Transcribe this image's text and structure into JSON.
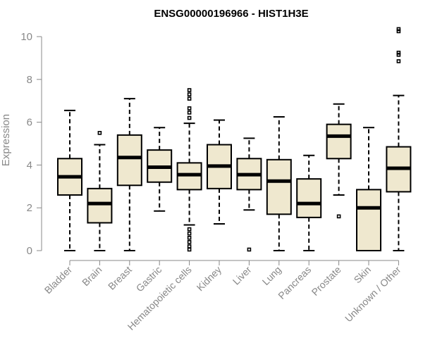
{
  "chart_data": {
    "type": "boxplot",
    "title": "ENSG00000196966 - HIST1H3E",
    "xlabel": "",
    "ylabel": "Expression",
    "ylim": [
      0,
      10.5
    ],
    "yticks": [
      0,
      2,
      4,
      6,
      8,
      10
    ],
    "colors": {
      "box_fill": "#efe8cf",
      "axis": "#888888",
      "stroke": "#000000"
    },
    "boxes": [
      {
        "category": "Bladder",
        "min": 0,
        "q1": 2.6,
        "median": 3.45,
        "q3": 4.3,
        "max": 6.55,
        "outliers": []
      },
      {
        "category": "Brain",
        "min": 0,
        "q1": 1.3,
        "median": 2.2,
        "q3": 2.9,
        "max": 4.95,
        "outliers": [
          5.5
        ]
      },
      {
        "category": "Breast",
        "min": 0,
        "q1": 3.05,
        "median": 4.35,
        "q3": 5.4,
        "max": 7.1,
        "outliers": []
      },
      {
        "category": "Gastric",
        "min": 1.85,
        "q1": 3.2,
        "median": 3.9,
        "q3": 4.7,
        "max": 5.75,
        "outliers": []
      },
      {
        "category": "Hematopoietic cells",
        "min": 1.2,
        "q1": 2.85,
        "median": 3.55,
        "q3": 4.1,
        "max": 5.95,
        "outliers": [
          0.05,
          0.2,
          0.4,
          0.6,
          0.8,
          1.0,
          6.2,
          6.45,
          6.65,
          7.1,
          7.3,
          7.5
        ]
      },
      {
        "category": "Kidney",
        "min": 1.25,
        "q1": 2.9,
        "median": 3.95,
        "q3": 4.95,
        "max": 6.1,
        "outliers": []
      },
      {
        "category": "Liver",
        "min": 1.9,
        "q1": 2.85,
        "median": 3.55,
        "q3": 4.3,
        "max": 5.25,
        "outliers": [
          0.05
        ]
      },
      {
        "category": "Lung",
        "min": 0,
        "q1": 1.7,
        "median": 3.25,
        "q3": 4.25,
        "max": 6.25,
        "outliers": []
      },
      {
        "category": "Pancreas",
        "min": 0,
        "q1": 1.55,
        "median": 2.2,
        "q3": 3.35,
        "max": 4.45,
        "outliers": []
      },
      {
        "category": "Prostate",
        "min": 2.6,
        "q1": 4.3,
        "median": 5.35,
        "q3": 5.9,
        "max": 6.85,
        "outliers": [
          1.6
        ]
      },
      {
        "category": "Skin",
        "min": 0,
        "q1": 0,
        "median": 2.0,
        "q3": 2.85,
        "max": 5.75,
        "outliers": []
      },
      {
        "category": "Unknown / Other",
        "min": 0,
        "q1": 2.75,
        "median": 3.85,
        "q3": 4.85,
        "max": 7.25,
        "outliers": [
          8.85,
          9.15,
          9.25,
          10.25,
          10.35
        ]
      }
    ]
  }
}
